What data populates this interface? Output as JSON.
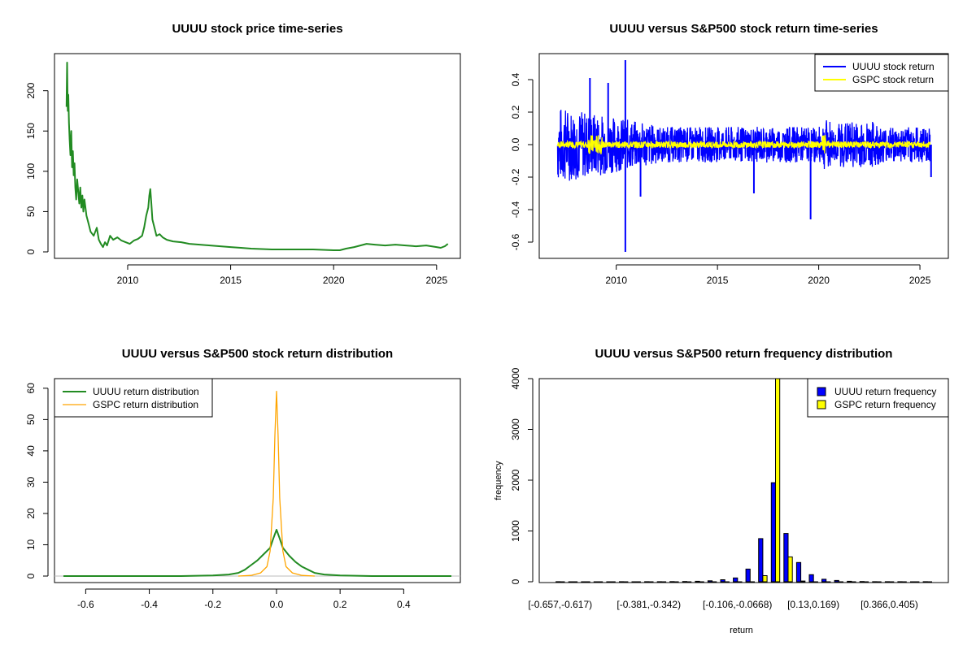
{
  "chart_data": [
    {
      "id": "price",
      "type": "line",
      "title": "UUUU stock price time-series",
      "xlabel": "",
      "ylabel": "",
      "xlim": [
        2007.0,
        2025.6
      ],
      "ylim": [
        0,
        240
      ],
      "xticks": [
        2010,
        2015,
        2020,
        2025
      ],
      "yticks": [
        0,
        50,
        100,
        150,
        200
      ],
      "grid": false,
      "colors": {
        "line": "#228B22"
      },
      "series": [
        {
          "x": [
            2007.03,
            2007.06,
            2007.09,
            2007.12,
            2007.15,
            2007.18,
            2007.22,
            2007.26,
            2007.3,
            2007.34,
            2007.38,
            2007.42,
            2007.46,
            2007.5,
            2007.55,
            2007.6,
            2007.65,
            2007.7,
            2007.75,
            2007.8,
            2007.85,
            2007.9,
            2008.0,
            2008.1,
            2008.2,
            2008.35,
            2008.5,
            2008.6,
            2008.7,
            2008.8,
            2008.9,
            2009.0,
            2009.15,
            2009.3,
            2009.5,
            2009.7,
            2009.9,
            2010.1,
            2010.3,
            2010.5,
            2010.7,
            2010.8,
            2010.9,
            2011.0,
            2011.05,
            2011.1,
            2011.15,
            2011.2,
            2011.3,
            2011.4,
            2011.55,
            2011.7,
            2011.9,
            2012.2,
            2012.6,
            2013.0,
            2013.5,
            2014.0,
            2014.5,
            2015.0,
            2015.5,
            2016.0,
            2016.5,
            2017.0,
            2017.5,
            2018.0,
            2018.5,
            2019.0,
            2019.5,
            2020.0,
            2020.3,
            2020.6,
            2021.0,
            2021.3,
            2021.6,
            2022.0,
            2022.5,
            2023.0,
            2023.5,
            2024.0,
            2024.5,
            2025.0,
            2025.2,
            2025.4,
            2025.55
          ],
          "y": [
            180,
            235,
            175,
            195,
            160,
            140,
            120,
            150,
            105,
            125,
            95,
            110,
            80,
            65,
            90,
            75,
            60,
            80,
            55,
            70,
            50,
            65,
            45,
            35,
            25,
            20,
            30,
            15,
            10,
            6,
            12,
            8,
            20,
            15,
            18,
            14,
            12,
            10,
            14,
            16,
            20,
            30,
            45,
            55,
            70,
            78,
            60,
            40,
            30,
            20,
            22,
            18,
            15,
            13,
            12,
            10,
            9,
            8,
            7,
            6,
            5,
            4,
            3.5,
            3,
            3,
            3,
            3,
            3,
            2.5,
            2,
            2,
            4,
            6,
            8,
            10,
            9,
            8,
            9,
            8,
            7,
            8,
            6,
            5,
            7,
            10
          ]
        }
      ]
    },
    {
      "id": "returns",
      "type": "line",
      "title": "UUUU versus S&P500 stock return time-series",
      "xlabel": "",
      "ylabel": "",
      "xlim": [
        2007.0,
        2025.6
      ],
      "ylim": [
        -0.66,
        0.52
      ],
      "xticks": [
        2010,
        2015,
        2020,
        2025
      ],
      "yticks": [
        -0.6,
        -0.4,
        -0.2,
        0.0,
        0.2,
        0.4
      ],
      "ytick_labels": [
        "-0.6",
        "-0.4",
        "-0.2",
        "0.0",
        "0.2",
        "0.4"
      ],
      "grid": false,
      "legend": "top-right",
      "series": [
        {
          "name": "UUUU stock return",
          "color": "#0000FF"
        },
        {
          "name": "GSPC stock return",
          "color": "#FFFF00"
        }
      ],
      "spikes": [
        {
          "x": 2008.7,
          "y": 0.41
        },
        {
          "x": 2009.6,
          "y": 0.38
        },
        {
          "x": 2010.45,
          "y": 0.52
        },
        {
          "x": 2010.45,
          "y": -0.66
        },
        {
          "x": 2011.2,
          "y": -0.32
        },
        {
          "x": 2016.8,
          "y": -0.3
        },
        {
          "x": 2019.6,
          "y": -0.46
        },
        {
          "x": 2025.55,
          "y": -0.2
        }
      ]
    },
    {
      "id": "density",
      "type": "line",
      "title": "UUUU versus S&P500 stock return distribution",
      "xlabel": "",
      "ylabel": "",
      "xlim": [
        -0.67,
        0.55
      ],
      "ylim": [
        0,
        61
      ],
      "xticks": [
        -0.6,
        -0.4,
        -0.2,
        0.0,
        0.2,
        0.4
      ],
      "xtick_labels": [
        "-0.6",
        "-0.4",
        "-0.2",
        "0.0",
        "0.2",
        "0.4"
      ],
      "yticks": [
        0,
        10,
        20,
        30,
        40,
        50,
        60
      ],
      "grid": false,
      "legend": "top-left",
      "series": [
        {
          "name": "UUUU return distribution",
          "color": "#228B22",
          "x": [
            -0.67,
            -0.3,
            -0.2,
            -0.15,
            -0.12,
            -0.1,
            -0.08,
            -0.06,
            -0.04,
            -0.02,
            -0.01,
            0,
            0.01,
            0.02,
            0.04,
            0.06,
            0.08,
            0.1,
            0.12,
            0.15,
            0.2,
            0.3,
            0.55
          ],
          "y": [
            0,
            0,
            0.2,
            0.5,
            1,
            2,
            3.5,
            5,
            7,
            9,
            12,
            14.8,
            12,
            9,
            6.5,
            4.5,
            3,
            2,
            1,
            0.5,
            0.2,
            0,
            0
          ]
        },
        {
          "name": "GSPC return distribution",
          "color": "#FFA500",
          "x": [
            -0.12,
            -0.08,
            -0.05,
            -0.03,
            -0.02,
            -0.01,
            -0.005,
            0,
            0.005,
            0.01,
            0.02,
            0.03,
            0.05,
            0.08,
            0.12
          ],
          "y": [
            0,
            0.2,
            1,
            3,
            8,
            25,
            45,
            59,
            45,
            25,
            8,
            3,
            1,
            0.2,
            0
          ]
        }
      ]
    },
    {
      "id": "histogram",
      "type": "bar",
      "title": "UUUU versus S&P500 return frequency distribution",
      "xlabel": "return",
      "ylabel": "frequency",
      "ylim": [
        0,
        4000
      ],
      "yticks": [
        0,
        1000,
        2000,
        3000,
        4000
      ],
      "categories": [
        "[-0.657,-0.617)",
        "[-0.617,-0.578)",
        "[-0.578,-0.539)",
        "[-0.539,-0.499)",
        "[-0.499,-0.46)",
        "[-0.46,-0.42)",
        "[-0.42,-0.381)",
        "[-0.381,-0.342)",
        "[-0.342,-0.302)",
        "[-0.302,-0.263)",
        "[-0.263,-0.224)",
        "[-0.224,-0.184)",
        "[-0.184,-0.145)",
        "[-0.145,-0.106)",
        "[-0.106,-0.0668)",
        "[-0.0668,-0.0274)",
        "[-0.0274,0.012)",
        "[0.012,0.0514)",
        "[0.0514,0.0908)",
        "[0.0908,0.13)",
        "[0.13,0.169)",
        "[0.169,0.209)",
        "[0.209,0.248)",
        "[0.248,0.287)",
        "[0.287,0.327)",
        "[0.327,0.366)",
        "[0.366,0.405)",
        "[0.405,0.445)",
        "[0.445,0.484)",
        "[0.484,0.523)"
      ],
      "shown_xtick_labels": [
        "[-0.657,-0.617)",
        "[-0.381,-0.342)",
        "[-0.106,-0.0668)",
        "[0.13,0.169)",
        "[0.366,0.405)"
      ],
      "legend": "top-right",
      "grid": false,
      "series": [
        {
          "name": "UUUU return frequency",
          "color": "#0000FF",
          "values": [
            1,
            0,
            0,
            0,
            0,
            1,
            0,
            1,
            2,
            3,
            5,
            10,
            20,
            40,
            75,
            250,
            850,
            1950,
            950,
            380,
            140,
            50,
            25,
            10,
            5,
            2,
            1,
            1,
            0,
            1
          ]
        },
        {
          "name": "GSPC return frequency",
          "color": "#FFFF00",
          "values": [
            0,
            0,
            0,
            0,
            0,
            0,
            0,
            0,
            0,
            0,
            0,
            0,
            0,
            0,
            0,
            0,
            120,
            4000,
            490,
            15,
            0,
            0,
            0,
            0,
            0,
            0,
            0,
            0,
            0,
            0
          ]
        }
      ]
    }
  ]
}
